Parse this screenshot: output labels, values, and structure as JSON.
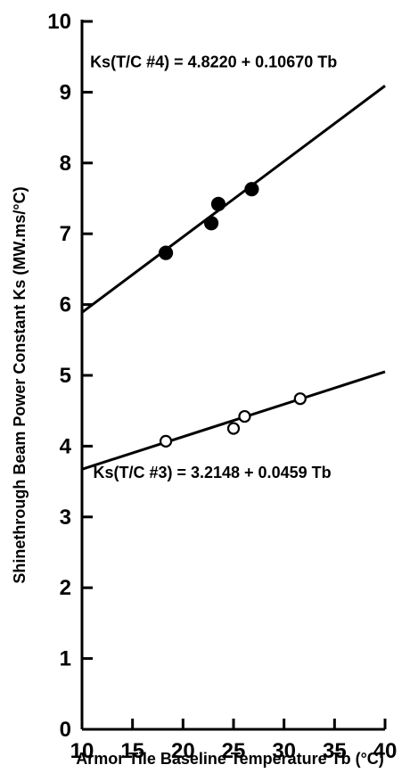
{
  "chart_data": {
    "type": "scatter",
    "xlabel": "Armor Tile Baseline Temperature Tb (°C)",
    "ylabel": "Shinethrough Beam Power Constant Ks (MW.ms/°C)",
    "xlim": [
      10,
      40
    ],
    "ylim": [
      0,
      10
    ],
    "x_ticks": [
      10,
      15,
      20,
      25,
      30,
      35,
      40
    ],
    "y_ticks": [
      0,
      1,
      2,
      3,
      4,
      5,
      6,
      7,
      8,
      9,
      10
    ],
    "grid": false,
    "series": [
      {
        "marker": "filled-circle",
        "points": [
          [
            18.3,
            6.73
          ],
          [
            22.8,
            7.15
          ],
          [
            23.5,
            7.42
          ],
          [
            26.8,
            7.63
          ]
        ],
        "fit": {
          "intercept": 4.822,
          "slope": 0.1067
        },
        "label": "Ks(T/C #4) = 4.8220 + 0.10670 Tb",
        "label_anchor": {
          "x": 10.8,
          "y": 9.35
        }
      },
      {
        "marker": "open-circle",
        "points": [
          [
            18.3,
            4.07
          ],
          [
            25.0,
            4.25
          ],
          [
            26.1,
            4.42
          ],
          [
            31.6,
            4.67
          ]
        ],
        "fit": {
          "intercept": 3.2148,
          "slope": 0.0459
        },
        "label": "Ks(T/C #3) = 3.2148 + 0.0459 Tb",
        "label_anchor": {
          "x": 11.1,
          "y": 3.55
        }
      }
    ]
  }
}
